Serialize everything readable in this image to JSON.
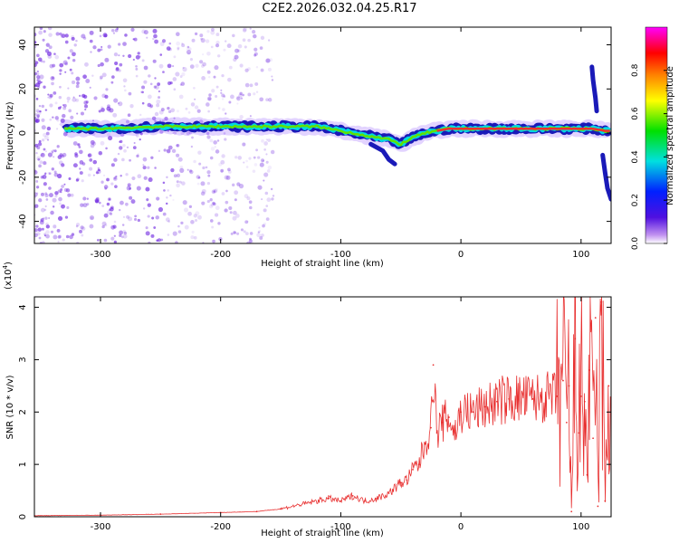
{
  "figure_title": "C2E2.2026.032.04.25.R17",
  "colors": {
    "snr_line": "#e83030",
    "ridge_edge": "#1a1ab8",
    "ridge_core": "#f03030",
    "scatter": "#6a20e0"
  },
  "chart_data": [
    {
      "type": "heatmap",
      "title": "",
      "xlabel": "Height of straight line (km)",
      "ylabel": "Frequency (Hz)",
      "xlim": [
        -355,
        125
      ],
      "ylim": [
        -50,
        48
      ],
      "xticks": [
        -300,
        -200,
        -100,
        0,
        100
      ],
      "yticks": [
        -40,
        -20,
        0,
        20,
        40
      ],
      "colorbar": {
        "label": "Normalized spectral amplitude",
        "range": [
          0,
          1
        ],
        "ticks": [
          "0.0",
          "0.2",
          "0.4",
          "0.6",
          "0.8"
        ],
        "colors": [
          "#ffffff",
          "#c090f0",
          "#5010e0",
          "#0020ff",
          "#00e0e0",
          "#00e000",
          "#ffff00",
          "#ff8000",
          "#ff0000",
          "#ff00ff"
        ]
      },
      "ridge": {
        "x": [
          -330,
          -300,
          -250,
          -200,
          -150,
          -120,
          -100,
          -80,
          -60,
          -50,
          -40,
          -30,
          -20,
          -10,
          0,
          20,
          50,
          80,
          100,
          110,
          120,
          125
        ],
        "y": [
          2,
          2,
          3,
          3,
          3,
          3,
          1,
          -1,
          -3,
          -5,
          -2,
          0,
          1,
          2,
          2,
          2,
          2,
          2,
          2,
          2,
          1,
          1
        ]
      },
      "side_branches": [
        {
          "x": [
            -75,
            -65,
            -60,
            -55
          ],
          "y": [
            -5,
            -8,
            -12,
            -14
          ]
        },
        {
          "x": [
            109,
            110,
            112,
            113
          ],
          "y": [
            30,
            24,
            16,
            10
          ]
        },
        {
          "x": [
            118,
            120,
            122,
            125
          ],
          "y": [
            -10,
            -18,
            -25,
            -30
          ]
        }
      ]
    },
    {
      "type": "line",
      "title": "",
      "xlabel": "Height of straight line (km)",
      "ylabel": "SNR (10 * v/v)",
      "y_multiplier": "(x10",
      "y_multiplier_exponent": "4",
      "y_multiplier_close": ")",
      "xlim": [
        -355,
        125
      ],
      "ylim": [
        0,
        4.2
      ],
      "xticks": [
        -300,
        -200,
        -100,
        0,
        100
      ],
      "yticks": [
        0,
        1,
        2,
        3,
        4
      ],
      "series": [
        {
          "name": "SNR",
          "x": [
            -355,
            -300,
            -250,
            -200,
            -170,
            -150,
            -130,
            -110,
            -100,
            -90,
            -80,
            -70,
            -60,
            -50,
            -45,
            -40,
            -35,
            -30,
            -25,
            -23,
            -20,
            -15,
            -10,
            -5,
            0,
            10,
            20,
            30,
            40,
            60,
            80,
            85,
            88,
            90,
            92,
            95,
            98,
            100,
            103,
            105,
            107,
            110,
            112,
            114,
            117,
            120,
            123,
            125
          ],
          "y": [
            0.02,
            0.03,
            0.05,
            0.08,
            0.1,
            0.15,
            0.25,
            0.35,
            0.3,
            0.4,
            0.3,
            0.35,
            0.45,
            0.65,
            0.7,
            0.9,
            1.0,
            1.4,
            1.7,
            2.9,
            1.6,
            1.8,
            1.9,
            1.6,
            2.0,
            2.0,
            2.1,
            2.2,
            2.25,
            2.25,
            2.3,
            2.6,
            1.8,
            2.5,
            0.1,
            3.4,
            1.6,
            2.3,
            2.2,
            0.8,
            2.8,
            1.5,
            3.8,
            0.2,
            4.1,
            0.3,
            2.5,
            2.2
          ]
        }
      ]
    }
  ]
}
